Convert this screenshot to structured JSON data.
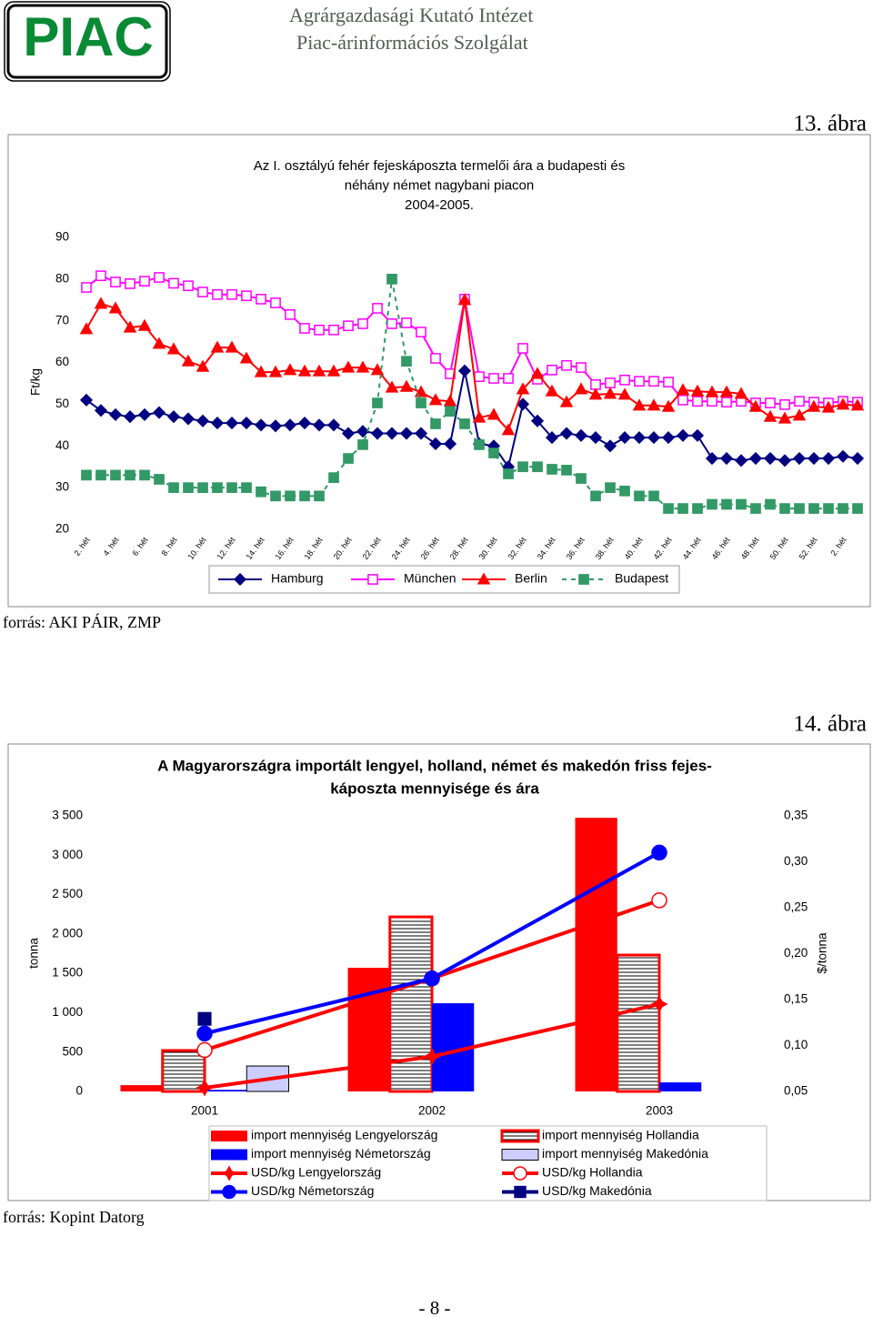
{
  "header": {
    "logo": "PIAC",
    "institute": "Agrárgazdasági Kutató Intézet",
    "service": "Piac-árinformációs Szolgálat"
  },
  "figures": [
    {
      "label": "13. ábra",
      "source": "forrás: AKI PÁIR, ZMP"
    },
    {
      "label": "14. ábra",
      "source": "forrás: Kopint Datorg"
    }
  ],
  "footer": {
    "page": "- 8 -"
  },
  "chart_data": [
    {
      "type": "line",
      "title": [
        "Az I. osztályú  fehér fejeskáposzta termelői ára a budapesti és",
        "néhány német  nagybani piacon",
        "2004-2005."
      ],
      "ylabel": "Ft/kg",
      "ylim": [
        20,
        90
      ],
      "yticks": [
        20,
        30,
        40,
        50,
        60,
        70,
        80,
        90
      ],
      "grid": false,
      "legend": "bottom",
      "categories": [
        "2. hét",
        null,
        "4. hét",
        null,
        "6. hét",
        null,
        "8. hét",
        null,
        "10. hét",
        null,
        "12. hét",
        null,
        "14. hét",
        null,
        "16. hét",
        null,
        "18. hét",
        null,
        "20. hét",
        null,
        "22. hét",
        null,
        "24. hét",
        null,
        "26. hét",
        null,
        "28. hét",
        null,
        "30. hét",
        null,
        "32. hét",
        null,
        "34. hét",
        null,
        "36. hét",
        null,
        "38. hét",
        null,
        "40. hét",
        null,
        "42. hét",
        null,
        "44. hét",
        null,
        "46. hét",
        null,
        "48. hét",
        null,
        "50. hét",
        null,
        "52. hét",
        null,
        "2. hét",
        null
      ],
      "series": [
        {
          "name": "Hamburg",
          "color": "#000080",
          "marker": "diamond",
          "marker_fill": "#000080",
          "line_style": "solid",
          "values": [
            51,
            48.5,
            47.5,
            47,
            47.5,
            48,
            47,
            46.5,
            46,
            45.5,
            45.5,
            45.5,
            45,
            44.8,
            45,
            45.5,
            45,
            45,
            43,
            43.5,
            43,
            43,
            43,
            43,
            40.5,
            40.5,
            58,
            40.5,
            40,
            35,
            50,
            46,
            42,
            43,
            42.5,
            42,
            40,
            42,
            42,
            42,
            42,
            42.5,
            42.5,
            37,
            37,
            36.5,
            37,
            37,
            36.5,
            37,
            37,
            37,
            37.5,
            37
          ]
        },
        {
          "name": "München",
          "color": "#FF00FF",
          "marker": "square",
          "marker_fill": "#FFFFFF",
          "line_style": "solid",
          "values": [
            78,
            80.8,
            79.3,
            78.9,
            79.5,
            80.4,
            79,
            78.4,
            76.9,
            76.3,
            76.3,
            76,
            75.2,
            74.3,
            71.5,
            68.2,
            67.8,
            67.8,
            68.8,
            69.3,
            73,
            69.3,
            69.5,
            67.3,
            61,
            57.3,
            75.2,
            56.6,
            56.2,
            56.2,
            63.4,
            56,
            58.2,
            59.3,
            58.8,
            54.7,
            55.1,
            55.8,
            55.5,
            55.5,
            55.3,
            51,
            50.7,
            50.7,
            50.5,
            50.7,
            50.3,
            50.3,
            49.9,
            50.7,
            50.5,
            50.3,
            50.7,
            50.5
          ]
        },
        {
          "name": "Berlin",
          "color": "#FF0000",
          "marker": "triangle",
          "marker_fill": "#FF0000",
          "line_style": "solid",
          "values": [
            68,
            74.1,
            73,
            68.4,
            68.8,
            64.5,
            63.2,
            60.3,
            59,
            63.6,
            63.6,
            61,
            57.7,
            57.7,
            58.2,
            57.9,
            57.9,
            57.9,
            58.8,
            58.8,
            58.2,
            54,
            54.2,
            52.9,
            51,
            50.7,
            75,
            46.8,
            47.5,
            43.8,
            53.6,
            57.3,
            53.1,
            50.5,
            53.6,
            52.3,
            52.5,
            52.3,
            49.7,
            49.7,
            49.4,
            53.4,
            53.1,
            52.9,
            52.9,
            52.5,
            49.4,
            47,
            46.6,
            47.3,
            49.4,
            49.2,
            49.9,
            49.7
          ]
        },
        {
          "name": "Budapest",
          "color": "#339966",
          "marker": "square",
          "marker_fill": "#339966",
          "line_style": "dashed",
          "values": [
            33,
            33,
            33,
            33,
            33,
            32,
            30,
            30,
            30,
            30,
            30,
            30,
            29,
            28,
            28,
            28,
            28,
            32.4,
            37,
            40.3,
            50.3,
            80,
            60.3,
            50.3,
            45.3,
            48.3,
            45.3,
            40.3,
            38.3,
            33.3,
            35,
            35,
            34.4,
            34.2,
            32.2,
            28,
            30,
            29.2,
            28,
            28,
            25,
            25,
            25,
            26,
            26,
            26,
            25,
            26,
            25,
            25,
            25,
            25,
            25,
            25
          ]
        }
      ]
    },
    {
      "type": "combo",
      "title": [
        "A Magyarországra importált lengyel, holland, német és makedón friss fejes-",
        "káposzta mennyisége és ára"
      ],
      "ylabel": "tonna",
      "y2label": "$/tonna",
      "legend": "bottom",
      "categories": [
        "2001",
        "2002",
        "2003"
      ],
      "ylim": [
        0,
        3500
      ],
      "yticks": [
        0,
        500,
        {
          "value": 1000,
          "label": "1 000"
        },
        {
          "value": 1500,
          "label": "1 500"
        },
        {
          "value": 2000,
          "label": "2 000"
        },
        {
          "value": 2500,
          "label": "2 500"
        },
        {
          "value": 3000,
          "label": "3 000"
        },
        {
          "value": 3500,
          "label": "3 500"
        }
      ],
      "y2lim": [
        0.05,
        0.35
      ],
      "y2ticks": [
        {
          "value": 0.05,
          "label": "0,05"
        },
        {
          "value": 0.1,
          "label": "0,10"
        },
        {
          "value": 0.15,
          "label": "0,15"
        },
        {
          "value": 0.2,
          "label": "0,20"
        },
        {
          "value": 0.25,
          "label": "0,25"
        },
        {
          "value": 0.3,
          "label": "0,30"
        },
        {
          "value": 0.35,
          "label": "0,35"
        }
      ],
      "series": [
        {
          "name": "import mennyiség Lengyelország",
          "type": "bar",
          "color": "#FF0000",
          "values": [
            80,
            1570,
            3475
          ]
        },
        {
          "name": "import mennyiség Hollandia",
          "type": "bar",
          "color": "#FF0000",
          "pattern": "hlines",
          "values": [
            520,
            2217,
            1732
          ]
        },
        {
          "name": "import mennyiség Németország",
          "type": "bar",
          "color": "#0000FF",
          "values": [
            20,
            1120,
            115
          ]
        },
        {
          "name": "import mennyiség Makedónia",
          "type": "bar",
          "color": "#CCCCFF",
          "stroke": "#000000",
          "values": [
            323,
            null,
            null
          ]
        },
        {
          "name": "USD/kg Lengyelország",
          "type": "line",
          "axis": "y2",
          "color": "#FF0000",
          "marker": "star",
          "marker_fill": "#FF0000",
          "values": [
            0.054,
            0.088,
            0.145
          ]
        },
        {
          "name": "USD/kg Hollandia",
          "type": "line",
          "axis": "y2",
          "color": "#FF0000",
          "marker": "circle",
          "marker_fill": "#FFFFFF",
          "values": [
            0.095,
            0.173,
            0.258
          ]
        },
        {
          "name": "USD/kg Németország",
          "type": "line",
          "axis": "y2",
          "color": "#0000FF",
          "marker": "circle",
          "marker_fill": "#0000FF",
          "values": [
            0.113,
            0.173,
            0.31
          ]
        },
        {
          "name": "USD/kg Makedónia",
          "type": "line",
          "axis": "y2",
          "color": "#000080",
          "marker": "square",
          "marker_fill": "#000080",
          "values": [
            0.129,
            null,
            null
          ]
        }
      ]
    }
  ]
}
